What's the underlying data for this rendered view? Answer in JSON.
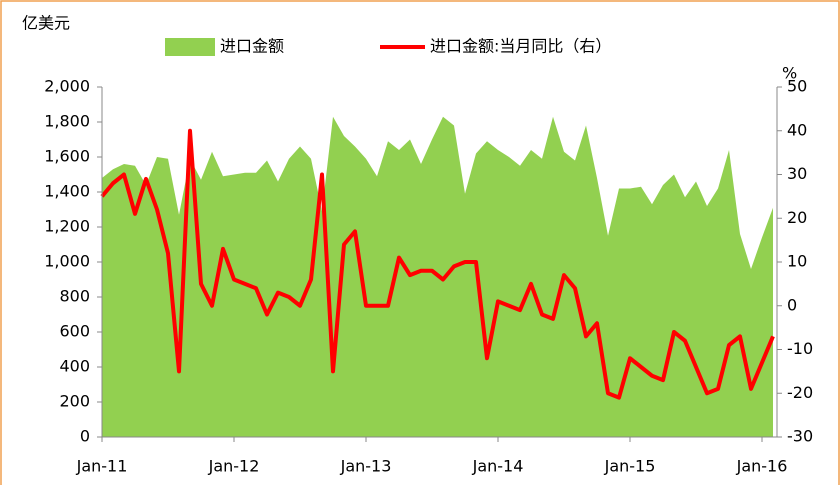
{
  "chart_data": {
    "type": "combo",
    "y_label": "亿美元",
    "y2_label": "%",
    "categories": [
      "Jan-11",
      null,
      null,
      null,
      null,
      null,
      null,
      null,
      null,
      null,
      null,
      null,
      "Jan-12",
      null,
      null,
      null,
      null,
      null,
      null,
      null,
      null,
      null,
      null,
      null,
      "Jan-13",
      null,
      null,
      null,
      null,
      null,
      null,
      null,
      null,
      null,
      null,
      null,
      "Jan-14",
      null,
      null,
      null,
      null,
      null,
      null,
      null,
      null,
      null,
      null,
      null,
      "Jan-15",
      null,
      null,
      null,
      null,
      null,
      null,
      null,
      null,
      null,
      null,
      null,
      "Jan-16",
      null
    ],
    "series": [
      {
        "name": "进口金额",
        "type": "area",
        "color": "#92d050",
        "values": [
          1480,
          1530,
          1560,
          1550,
          1440,
          1600,
          1590,
          1270,
          1590,
          1470,
          1630,
          1490,
          1500,
          1510,
          1510,
          1580,
          1460,
          1590,
          1660,
          1590,
          1290,
          1830,
          1720,
          1660,
          1590,
          1490,
          1690,
          1640,
          1700,
          1560,
          1700,
          1830,
          1780,
          1390,
          1620,
          1690,
          1640,
          1600,
          1550,
          1640,
          1590,
          1830,
          1630,
          1580,
          1780,
          1480,
          1150,
          1420,
          1420,
          1430,
          1330,
          1440,
          1500,
          1370,
          1460,
          1320,
          1420,
          1640,
          1160,
          960,
          1140,
          1310
        ]
      },
      {
        "name": "进口金额:当月同比（右）",
        "type": "line",
        "axis": "y2",
        "color": "#ff0000",
        "values": [
          25,
          28,
          30,
          21,
          29,
          22,
          12,
          -15,
          40,
          5,
          0,
          13,
          6,
          5,
          4,
          -2,
          3,
          2,
          0,
          6,
          30,
          -15,
          14,
          17,
          0,
          0,
          0,
          11,
          7,
          8,
          8,
          6,
          9,
          10,
          10,
          -12,
          1,
          0,
          -1,
          5,
          -2,
          -3,
          7,
          4,
          -7,
          -4,
          -20,
          -21,
          -12,
          -14,
          -16,
          -17,
          -6,
          -8,
          -14,
          -20,
          -19,
          -9,
          -7,
          -19,
          -13,
          -7
        ]
      }
    ],
    "ylim": [
      0,
      2000
    ],
    "yticks": [
      0,
      200,
      400,
      600,
      800,
      {
        "value": 1000,
        "label": "1,000"
      },
      {
        "value": 1200,
        "label": "1,200"
      },
      {
        "value": 1400,
        "label": "1,400"
      },
      {
        "value": 1600,
        "label": "1,600"
      },
      {
        "value": 1800,
        "label": "1,800"
      },
      {
        "value": 2000,
        "label": "2,000"
      }
    ],
    "y2lim": [
      -30,
      50
    ],
    "y2ticks": [
      -30,
      -20,
      -10,
      0,
      10,
      20,
      30,
      40,
      50
    ],
    "legend": "top",
    "grid": false
  }
}
